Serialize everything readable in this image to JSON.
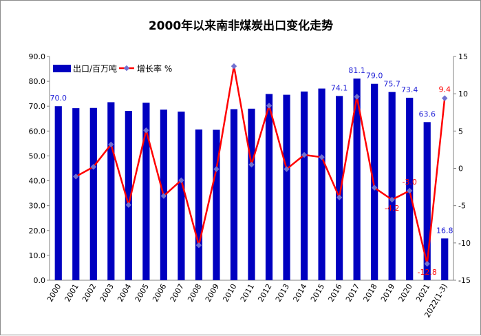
{
  "chart_data": {
    "type": "bar",
    "title": "2000年以来南非煤炭出口变化走势",
    "categories": [
      "2000",
      "2001",
      "2002",
      "2003",
      "2004",
      "2005",
      "2006",
      "2007",
      "2008",
      "2009",
      "2010",
      "2011",
      "2012",
      "2013",
      "2014",
      "2015",
      "2016",
      "2017",
      "2018",
      "2019",
      "2020",
      "2021",
      "2022(1-3)"
    ],
    "series": [
      {
        "name": "出口/百万吨",
        "type": "bar",
        "axis": "left",
        "color": "#0000c0",
        "values": [
          70.0,
          69.2,
          69.3,
          71.6,
          68.1,
          71.4,
          68.6,
          67.8,
          60.6,
          60.5,
          68.8,
          69.0,
          74.9,
          74.6,
          75.9,
          77.1,
          74.1,
          81.1,
          79.0,
          75.7,
          73.4,
          63.6,
          16.8
        ]
      },
      {
        "name": "增长率 %",
        "type": "line",
        "axis": "right",
        "color": "#ff0000",
        "values": [
          null,
          -1.1,
          0.2,
          3.2,
          -4.9,
          5.1,
          -3.7,
          -1.6,
          -10.3,
          -0.1,
          13.7,
          0.5,
          8.4,
          -0.1,
          1.8,
          1.5,
          -3.9,
          9.6,
          -2.6,
          -4.2,
          -3.0,
          -12.8,
          9.4
        ]
      }
    ],
    "bar_labels": [
      {
        "index": 0,
        "text": "70.0"
      },
      {
        "index": 16,
        "text": "74.1"
      },
      {
        "index": 17,
        "text": "81.1"
      },
      {
        "index": 18,
        "text": "79.0"
      },
      {
        "index": 19,
        "text": "75.7"
      },
      {
        "index": 20,
        "text": "73.4"
      },
      {
        "index": 21,
        "text": "63.6"
      },
      {
        "index": 22,
        "text": "16.8"
      }
    ],
    "rate_labels": [
      {
        "index": 19,
        "text": "-4.2"
      },
      {
        "index": 20,
        "text": "-3.0"
      },
      {
        "index": 21,
        "text": "-12.8"
      },
      {
        "index": 22,
        "text": "9.4"
      }
    ],
    "y_left": {
      "min": 0,
      "max": 90,
      "step": 10,
      "ticks": [
        "0.0",
        "10.0",
        "20.0",
        "30.0",
        "40.0",
        "50.0",
        "60.0",
        "70.0",
        "80.0",
        "90.0"
      ]
    },
    "y_right": {
      "min": -15,
      "max": 15,
      "step": 5,
      "ticks": [
        "-15",
        "-10",
        "-5",
        "0",
        "5",
        "10",
        "15"
      ]
    },
    "grid": false,
    "legend_position": "top-left"
  }
}
